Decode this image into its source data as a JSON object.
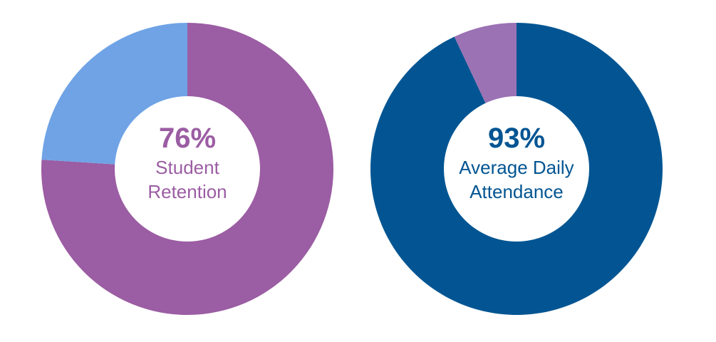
{
  "chart_data": [
    {
      "type": "pie",
      "percent_label": "76%",
      "label_lines": [
        "Student",
        "Retention"
      ],
      "slices": [
        {
          "value": 76,
          "color": "#9b5da3"
        },
        {
          "value": 24,
          "color": "#6fa3e6"
        }
      ],
      "text_color": "#9b5da3"
    },
    {
      "type": "pie",
      "percent_label": "93%",
      "label_lines": [
        "Average Daily",
        "Attendance"
      ],
      "slices": [
        {
          "value": 93,
          "color": "#025592"
        },
        {
          "value": 7,
          "color": "#9b72b4"
        }
      ],
      "text_color": "#025592"
    }
  ]
}
